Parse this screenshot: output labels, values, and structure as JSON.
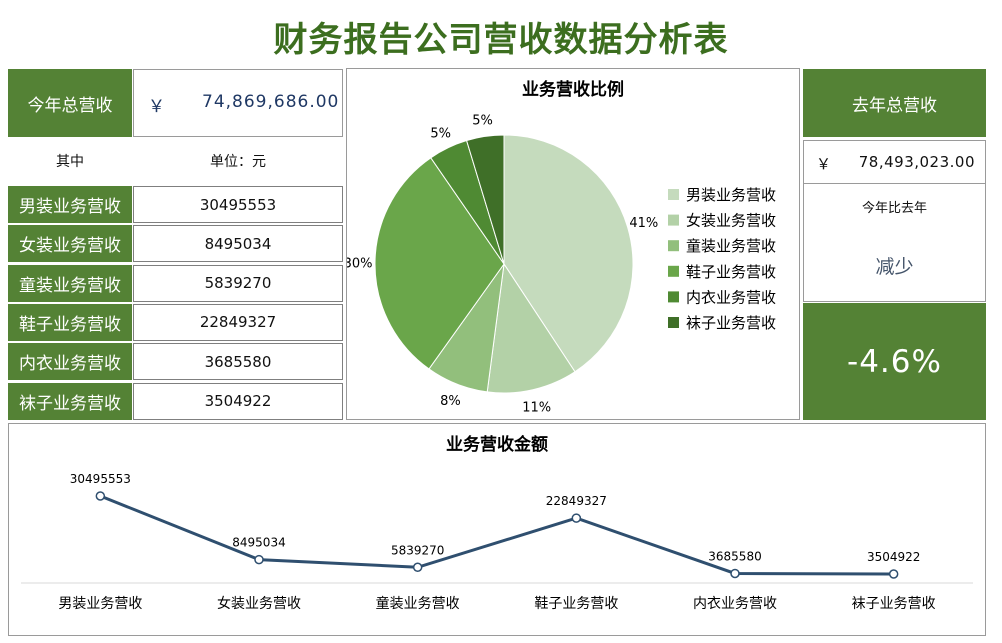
{
  "title": "财务报告公司营收数据分析表",
  "current": {
    "label": "今年总营收",
    "currency": "￥",
    "amount": "74,869,686.00"
  },
  "subheader": {
    "left": "其中",
    "right": "单位：元"
  },
  "rows": [
    {
      "label": "男装业务营收",
      "value": "30495553"
    },
    {
      "label": "女装业务营收",
      "value": "8495034"
    },
    {
      "label": "童装业务营收",
      "value": "5839270"
    },
    {
      "label": "鞋子业务营收",
      "value": "22849327"
    },
    {
      "label": "内衣业务营收",
      "value": "3685580"
    },
    {
      "label": "袜子业务营收",
      "value": "3504922"
    }
  ],
  "previous": {
    "label": "去年总营收",
    "currency": "￥",
    "amount": "78,493,023.00",
    "compare_label": "今年比去年",
    "trend": "减少",
    "change": "-4.6%"
  },
  "colors": {
    "brand": "#548235",
    "title": "#3c6e1f",
    "line": "#2f4f6f",
    "trend": "#44546a"
  },
  "chart_data": [
    {
      "type": "pie",
      "title": "业务营收比例",
      "slices": [
        {
          "name": "男装业务营收",
          "value": 30495553,
          "label": "41%",
          "color": "#c5dbbd"
        },
        {
          "name": "女装业务营收",
          "value": 8495034,
          "label": "11%",
          "color": "#b3d1a7"
        },
        {
          "name": "童装业务营收",
          "value": 5839270,
          "label": "8%",
          "color": "#92bf7c"
        },
        {
          "name": "鞋子业务营收",
          "value": 22849327,
          "label": "30%",
          "color": "#6aa64a"
        },
        {
          "name": "内衣业务营收",
          "value": 3685580,
          "label": "5%",
          "color": "#4f8a33"
        },
        {
          "name": "袜子业务营收",
          "value": 3504922,
          "label": "5%",
          "color": "#3f6f28"
        }
      ],
      "legend": "right"
    },
    {
      "type": "line",
      "title": "业务营收金额",
      "categories": [
        "男装业务营收",
        "女装业务营收",
        "童装业务营收",
        "鞋子业务营收",
        "内衣业务营收",
        "袜子业务营收"
      ],
      "values": [
        30495553,
        8495034,
        5839270,
        22849327,
        3685580,
        3504922
      ],
      "data_labels": [
        "30495553",
        "8495034",
        "5839270",
        "22849327",
        "3685580",
        "3504922"
      ]
    }
  ]
}
